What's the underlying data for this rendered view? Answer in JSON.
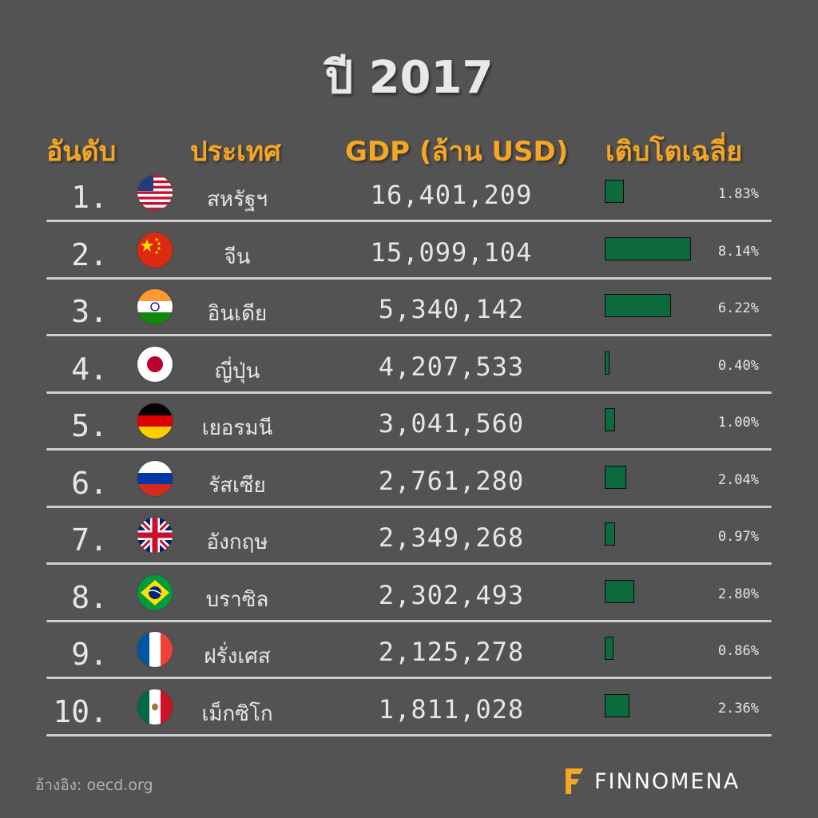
{
  "title": "ปี 2017",
  "headers": {
    "rank": "อันดับ",
    "country": "ประเทศ",
    "gdp": "GDP (ล้าน USD)",
    "growth": "เติบโตเฉลี่ย"
  },
  "source": "อ้างอิง: oecd.org",
  "brand": "FINNOMENA",
  "colors": {
    "background": "#535353",
    "header": "#f5a623",
    "bar": "#0c6a3c",
    "text": "#e6e6e6"
  },
  "chart_data": {
    "type": "table",
    "columns": [
      "อันดับ",
      "ประเทศ",
      "GDP (ล้าน USD)",
      "เติบโตเฉลี่ย"
    ],
    "rows": [
      {
        "rank": "1.",
        "flag": "usa-flag",
        "country": "สหรัฐฯ",
        "gdp": "16,401,209",
        "growth": "1.83%",
        "growth_value": 1.83
      },
      {
        "rank": "2.",
        "flag": "china-flag",
        "country": "จีน",
        "gdp": "15,099,104",
        "growth": "8.14%",
        "growth_value": 8.14
      },
      {
        "rank": "3.",
        "flag": "india-flag",
        "country": "อินเดีย",
        "gdp": "5,340,142",
        "growth": "6.22%",
        "growth_value": 6.22
      },
      {
        "rank": "4.",
        "flag": "japan-flag",
        "country": "ญี่ปุ่น",
        "gdp": "4,207,533",
        "growth": "0.40%",
        "growth_value": 0.4
      },
      {
        "rank": "5.",
        "flag": "germany-flag",
        "country": "เยอรมนี",
        "gdp": "3,041,560",
        "growth": "1.00%",
        "growth_value": 1.0
      },
      {
        "rank": "6.",
        "flag": "russia-flag",
        "country": "รัสเซีย",
        "gdp": "2,761,280",
        "growth": "2.04%",
        "growth_value": 2.04
      },
      {
        "rank": "7.",
        "flag": "uk-flag",
        "country": "อังกฤษ",
        "gdp": "2,349,268",
        "growth": "0.97%",
        "growth_value": 0.97
      },
      {
        "rank": "8.",
        "flag": "brazil-flag",
        "country": "บราซิล",
        "gdp": "2,302,493",
        "growth": "2.80%",
        "growth_value": 2.8
      },
      {
        "rank": "9.",
        "flag": "france-flag",
        "country": "ฝรั่งเศส",
        "gdp": "2,125,278",
        "growth": "0.86%",
        "growth_value": 0.86
      },
      {
        "rank": "10.",
        "flag": "mexico-flag",
        "country": "เม็กซิโก",
        "gdp": "1,811,028",
        "growth": "2.36%",
        "growth_value": 2.36
      }
    ]
  }
}
